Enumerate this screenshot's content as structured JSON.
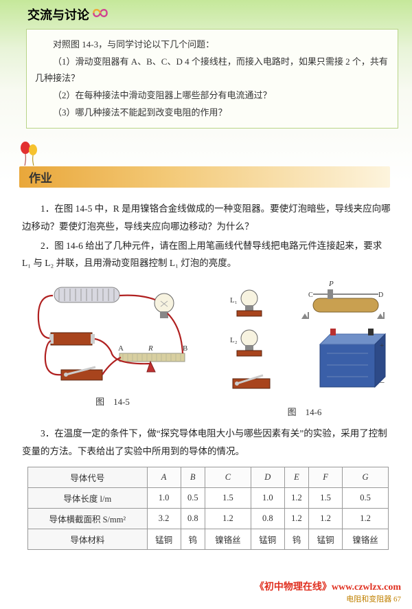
{
  "discussion": {
    "title": "交流与讨论",
    "intro": "对照图 14-3，与同学讨论以下几个问题：",
    "q1": "（1）滑动变阻器有 A、B、C、D 4 个接线柱，而接入电路时，如果只需接 2 个，共有几种接法？",
    "q2": "（2）在每种接法中滑动变阻器上哪些部分有电流通过？",
    "q3": "（3）哪几种接法不能起到改变电阻的作用？"
  },
  "homework": {
    "title": "作业",
    "p1": "1．在图 14-5 中，R 是用镍铬合金线做成的一种变阻器。要使灯泡暗些，导线夹应向哪边移动？要使灯泡亮些，导线夹应向哪边移动？为什么？",
    "p2": "2．图 14-6 给出了几种元件，请在图上用笔画线代替导线把电路元件连接起来，要求 L₁ 与 L₂ 并联，且用滑动变阻器控制 L₁ 灯泡的亮度。",
    "p3": "3．在温度一定的条件下，做“探究导体电阻大小与哪些因素有关”的实验，采用了控制变量的方法。下表给出了实验中所用到的导体的情况。",
    "fig145": "图　14-5",
    "fig146": "图　14-6",
    "labels": {
      "A": "A",
      "R": "R",
      "B": "B",
      "L1": "L₁",
      "L2": "L₂",
      "P": "P",
      "C": "C",
      "D": "D"
    }
  },
  "table": {
    "headers": [
      "导体代号",
      "A",
      "B",
      "C",
      "D",
      "E",
      "F",
      "G"
    ],
    "rows": [
      {
        "label": "导体长度 l/m",
        "cells": [
          "1.0",
          "0.5",
          "1.5",
          "1.0",
          "1.2",
          "1.5",
          "0.5"
        ]
      },
      {
        "label": "导体横截面积 S/mm²",
        "cells": [
          "3.2",
          "0.8",
          "1.2",
          "0.8",
          "1.2",
          "1.2",
          "1.2"
        ]
      },
      {
        "label": "导体材料",
        "cells": [
          "锰铜",
          "钨",
          "镍铬丝",
          "锰铜",
          "钨",
          "锰铜",
          "镍铬丝"
        ]
      }
    ]
  },
  "footer": {
    "site": "《初中物理在线》www.czwlzx.com",
    "pageinfo": "电阻和变阻器 67"
  },
  "colors": {
    "wire": "#b02020",
    "coil": "#c8c8d0",
    "bulb": "#f5f0e0",
    "battery_body": "#3a5fa8",
    "battery_top": "#7090c8",
    "rheostat": "#c9a050",
    "switch_base": "#a8441d",
    "metal": "#888"
  }
}
